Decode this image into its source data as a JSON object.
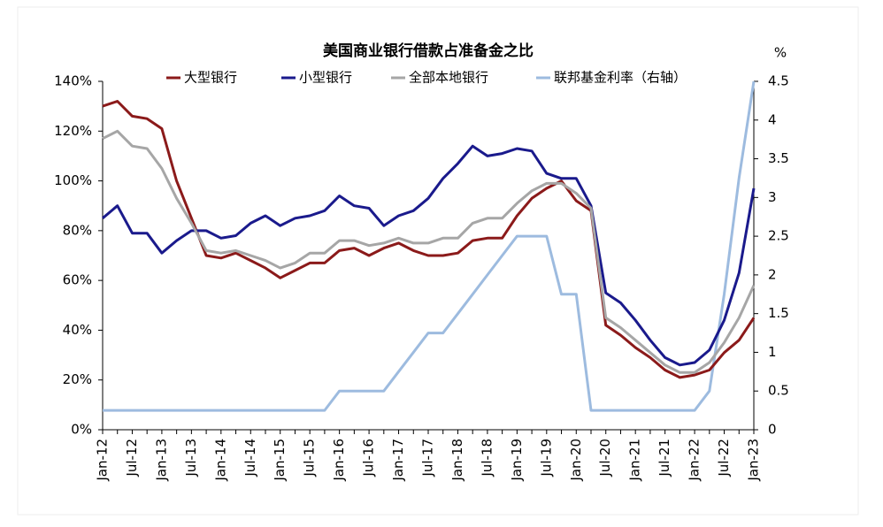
{
  "chart_data": {
    "type": "line",
    "title": "美国商业银行借款占准备金之比",
    "y2_label": "%",
    "categories": [
      "Jan-12",
      null,
      "Jul-12",
      null,
      "Jan-13",
      null,
      "Jul-13",
      null,
      "Jan-14",
      null,
      "Jul-14",
      null,
      "Jan-15",
      null,
      "Jul-15",
      null,
      "Jan-16",
      null,
      "Jul-16",
      null,
      "Jan-17",
      null,
      "Jul-17",
      null,
      "Jan-18",
      null,
      "Jul-18",
      null,
      "Jan-19",
      null,
      "Jul-19",
      null,
      "Jan-20",
      null,
      "Jul-20",
      null,
      "Jan-21",
      null,
      "Jul-21",
      null,
      "Jan-22",
      null,
      "Jul-22",
      null,
      "Jan-23"
    ],
    "series": [
      {
        "name": "大型银行",
        "color": "#8b1a1a",
        "values": [
          130,
          132,
          126,
          125,
          121,
          100,
          85,
          70,
          69,
          71,
          68,
          65,
          61,
          64,
          67,
          67,
          72,
          73,
          70,
          73,
          75,
          72,
          70,
          70,
          71,
          76,
          77,
          77,
          86,
          93,
          97,
          100,
          92,
          88,
          42,
          38,
          33,
          29,
          24,
          21,
          22,
          24,
          31,
          36,
          45
        ]
      },
      {
        "name": "小型银行",
        "color": "#1a1a8c",
        "values": [
          85,
          90,
          79,
          79,
          71,
          76,
          80,
          80,
          77,
          78,
          83,
          86,
          82,
          85,
          86,
          88,
          94,
          90,
          89,
          82,
          86,
          88,
          93,
          101,
          107,
          114,
          110,
          111,
          113,
          112,
          103,
          101,
          101,
          90,
          55,
          51,
          44,
          36,
          29,
          26,
          27,
          32,
          44,
          63,
          97
        ]
      },
      {
        "name": "全部本地银行",
        "color": "#a6a6a6",
        "values": [
          117,
          120,
          114,
          113,
          105,
          93,
          83,
          72,
          71,
          72,
          70,
          68,
          65,
          67,
          71,
          71,
          76,
          76,
          74,
          75,
          77,
          75,
          75,
          77,
          77,
          83,
          85,
          85,
          91,
          96,
          99,
          99,
          95,
          89,
          45,
          41,
          36,
          31,
          26,
          23,
          23,
          27,
          35,
          45,
          58
        ]
      },
      {
        "name": "联邦基金利率（右轴）",
        "color": "#9dbbdf",
        "axis": "y2",
        "values": [
          0.25,
          0.25,
          0.25,
          0.25,
          0.25,
          0.25,
          0.25,
          0.25,
          0.25,
          0.25,
          0.25,
          0.25,
          0.25,
          0.25,
          0.25,
          0.25,
          0.5,
          0.5,
          0.5,
          0.5,
          0.75,
          1.0,
          1.25,
          1.25,
          1.5,
          1.75,
          2.0,
          2.25,
          2.5,
          2.5,
          2.5,
          1.75,
          1.75,
          0.25,
          0.25,
          0.25,
          0.25,
          0.25,
          0.25,
          0.25,
          0.25,
          0.5,
          1.75,
          3.25,
          4.5
        ]
      }
    ],
    "ylim": [
      0,
      140
    ],
    "yticks": [
      {
        "value": 0,
        "label": "0%"
      },
      {
        "value": 20,
        "label": "20%"
      },
      {
        "value": 40,
        "label": "40%"
      },
      {
        "value": 60,
        "label": "60%"
      },
      {
        "value": 80,
        "label": "80%"
      },
      {
        "value": 100,
        "label": "100%"
      },
      {
        "value": 120,
        "label": "120%"
      },
      {
        "value": 140,
        "label": "140%"
      }
    ],
    "y2lim": [
      0,
      4.5
    ],
    "y2ticks": [
      0,
      0.5,
      1,
      1.5,
      2,
      2.5,
      3,
      3.5,
      4,
      4.5
    ]
  }
}
